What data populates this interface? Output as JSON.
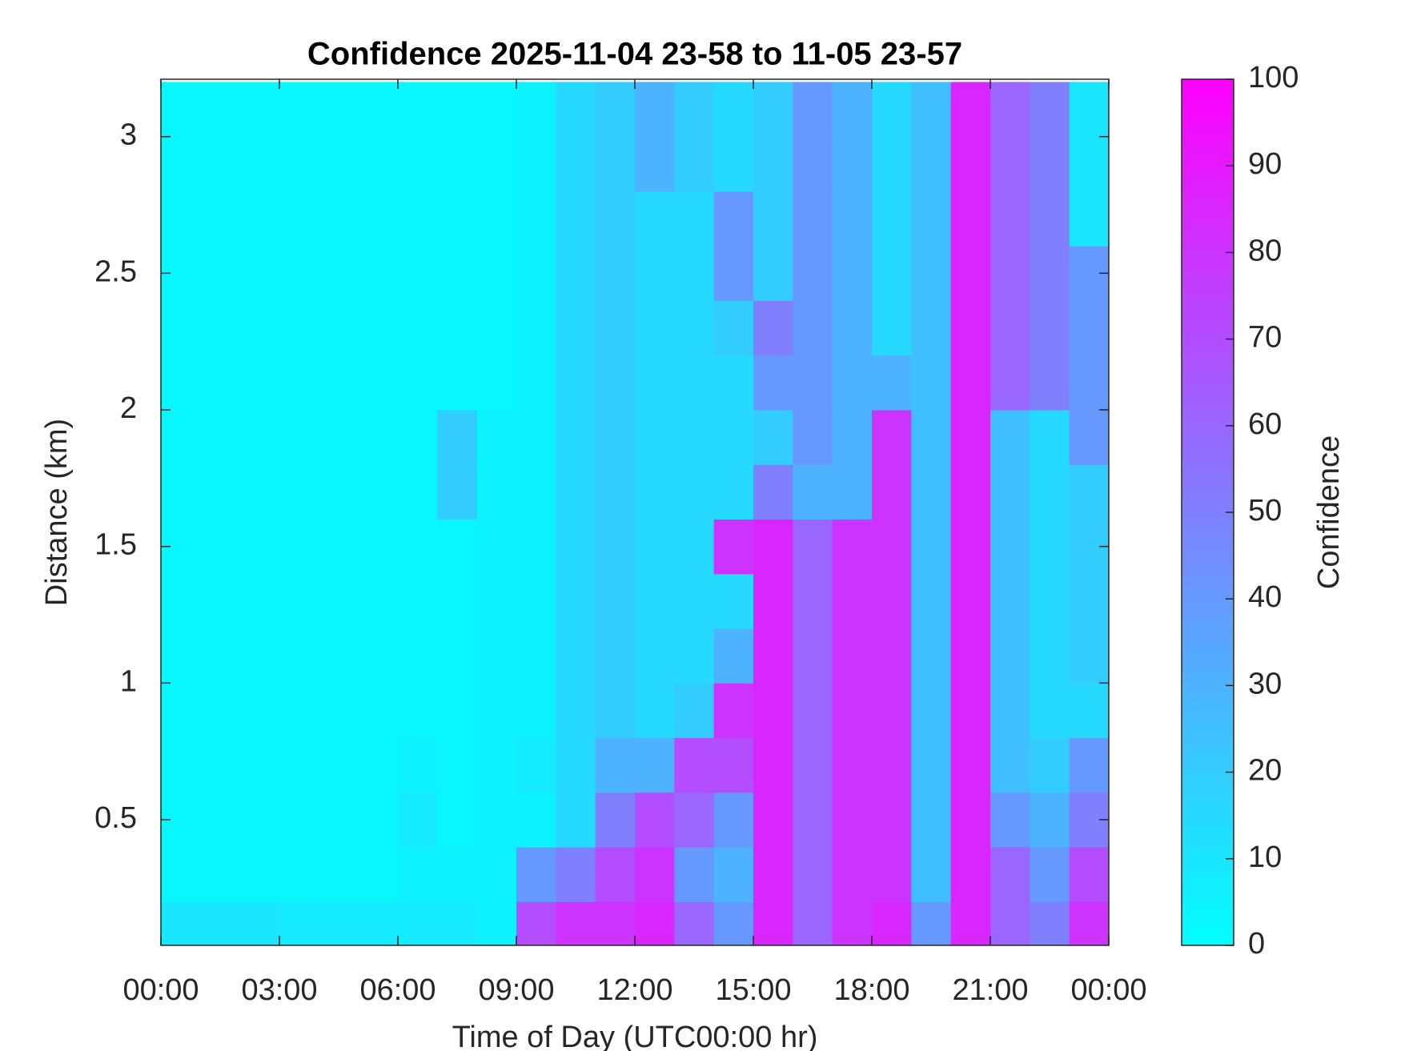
{
  "chart_data": {
    "type": "heatmap",
    "title": "Confidence 2025-11-04 23-58 to 11-05 23-57",
    "x_label": "Time of Day (UTC00:00 hr)",
    "y_label": "Distance (km)",
    "colorbar_label": "Confidence",
    "colormap": [
      "#00ffff",
      "#ff00ff"
    ],
    "x": [
      0.5,
      1.5,
      2.5,
      3.5,
      4.5,
      5.5,
      6.5,
      7.5,
      8.5,
      9.5,
      10.5,
      11.5,
      12.5,
      13.5,
      14.5,
      15.5,
      16.5,
      17.5,
      18.5,
      19.5,
      20.5,
      21.5,
      22.5,
      23.5
    ],
    "y": [
      0.1,
      0.3,
      0.5,
      0.7,
      0.9,
      1.1,
      1.3,
      1.5,
      1.7,
      1.9,
      2.1,
      2.3,
      2.5,
      2.7,
      2.9,
      3.1
    ],
    "z": [
      [
        10,
        10,
        10,
        8,
        8,
        8,
        8,
        8,
        5,
        70,
        80,
        80,
        85,
        60,
        40,
        85,
        60,
        80,
        85,
        40,
        85,
        60,
        50,
        80
      ],
      [
        3,
        3,
        3,
        3,
        3,
        3,
        5,
        5,
        5,
        40,
        50,
        70,
        80,
        40,
        30,
        85,
        60,
        80,
        80,
        25,
        85,
        60,
        40,
        70
      ],
      [
        3,
        3,
        3,
        3,
        3,
        3,
        8,
        3,
        5,
        5,
        15,
        50,
        70,
        60,
        40,
        85,
        60,
        80,
        80,
        25,
        85,
        40,
        30,
        50
      ],
      [
        3,
        3,
        3,
        3,
        3,
        3,
        5,
        3,
        5,
        8,
        15,
        30,
        30,
        70,
        70,
        85,
        60,
        80,
        80,
        25,
        85,
        25,
        20,
        40
      ],
      [
        3,
        3,
        3,
        3,
        3,
        3,
        3,
        3,
        5,
        5,
        15,
        20,
        15,
        20,
        80,
        85,
        60,
        80,
        80,
        25,
        85,
        25,
        15,
        15
      ],
      [
        3,
        3,
        3,
        3,
        3,
        3,
        3,
        3,
        5,
        5,
        15,
        20,
        15,
        15,
        30,
        85,
        60,
        80,
        80,
        25,
        85,
        25,
        15,
        20
      ],
      [
        3,
        3,
        3,
        3,
        3,
        3,
        3,
        3,
        5,
        5,
        15,
        20,
        15,
        15,
        15,
        85,
        60,
        80,
        80,
        25,
        85,
        25,
        15,
        20
      ],
      [
        3,
        3,
        3,
        3,
        3,
        3,
        3,
        3,
        5,
        5,
        15,
        20,
        15,
        15,
        80,
        85,
        60,
        80,
        80,
        25,
        85,
        25,
        15,
        20
      ],
      [
        3,
        3,
        3,
        3,
        3,
        3,
        3,
        20,
        5,
        5,
        15,
        20,
        15,
        15,
        15,
        50,
        30,
        30,
        80,
        25,
        85,
        25,
        15,
        20
      ],
      [
        3,
        3,
        3,
        3,
        3,
        3,
        3,
        20,
        5,
        5,
        15,
        20,
        15,
        15,
        15,
        20,
        40,
        30,
        80,
        25,
        85,
        25,
        15,
        40
      ],
      [
        3,
        3,
        3,
        3,
        3,
        3,
        3,
        3,
        3,
        5,
        15,
        20,
        15,
        15,
        15,
        40,
        40,
        30,
        30,
        25,
        85,
        60,
        50,
        40
      ],
      [
        3,
        3,
        3,
        3,
        3,
        3,
        3,
        3,
        3,
        5,
        15,
        20,
        15,
        15,
        20,
        50,
        40,
        30,
        15,
        25,
        85,
        60,
        50,
        40
      ],
      [
        3,
        3,
        3,
        3,
        3,
        3,
        3,
        3,
        3,
        5,
        15,
        20,
        15,
        15,
        40,
        20,
        40,
        30,
        15,
        25,
        85,
        60,
        50,
        40
      ],
      [
        3,
        3,
        3,
        3,
        3,
        3,
        3,
        3,
        3,
        5,
        15,
        20,
        15,
        15,
        40,
        20,
        40,
        30,
        15,
        25,
        85,
        60,
        50,
        10
      ],
      [
        3,
        3,
        3,
        3,
        3,
        3,
        3,
        3,
        3,
        5,
        15,
        20,
        30,
        20,
        15,
        20,
        40,
        30,
        15,
        25,
        85,
        60,
        50,
        10
      ],
      [
        3,
        3,
        3,
        3,
        3,
        3,
        3,
        3,
        3,
        5,
        15,
        20,
        30,
        20,
        15,
        20,
        40,
        30,
        15,
        25,
        85,
        60,
        50,
        10
      ]
    ],
    "xlim": [
      0,
      24
    ],
    "xticks": [
      {
        "value": 0,
        "label": "00:00"
      },
      {
        "value": 3,
        "label": "03:00"
      },
      {
        "value": 6,
        "label": "06:00"
      },
      {
        "value": 9,
        "label": "09:00"
      },
      {
        "value": 12,
        "label": "12:00"
      },
      {
        "value": 15,
        "label": "15:00"
      },
      {
        "value": 18,
        "label": "18:00"
      },
      {
        "value": 21,
        "label": "21:00"
      },
      {
        "value": 24,
        "label": "00:00"
      }
    ],
    "ylim": [
      0.04,
      3.21
    ],
    "yticks": [
      0.5,
      1,
      1.5,
      2,
      2.5,
      3
    ],
    "clim": [
      0,
      100
    ],
    "cticks": [
      0,
      10,
      20,
      30,
      40,
      50,
      60,
      70,
      80,
      90,
      100
    ]
  }
}
